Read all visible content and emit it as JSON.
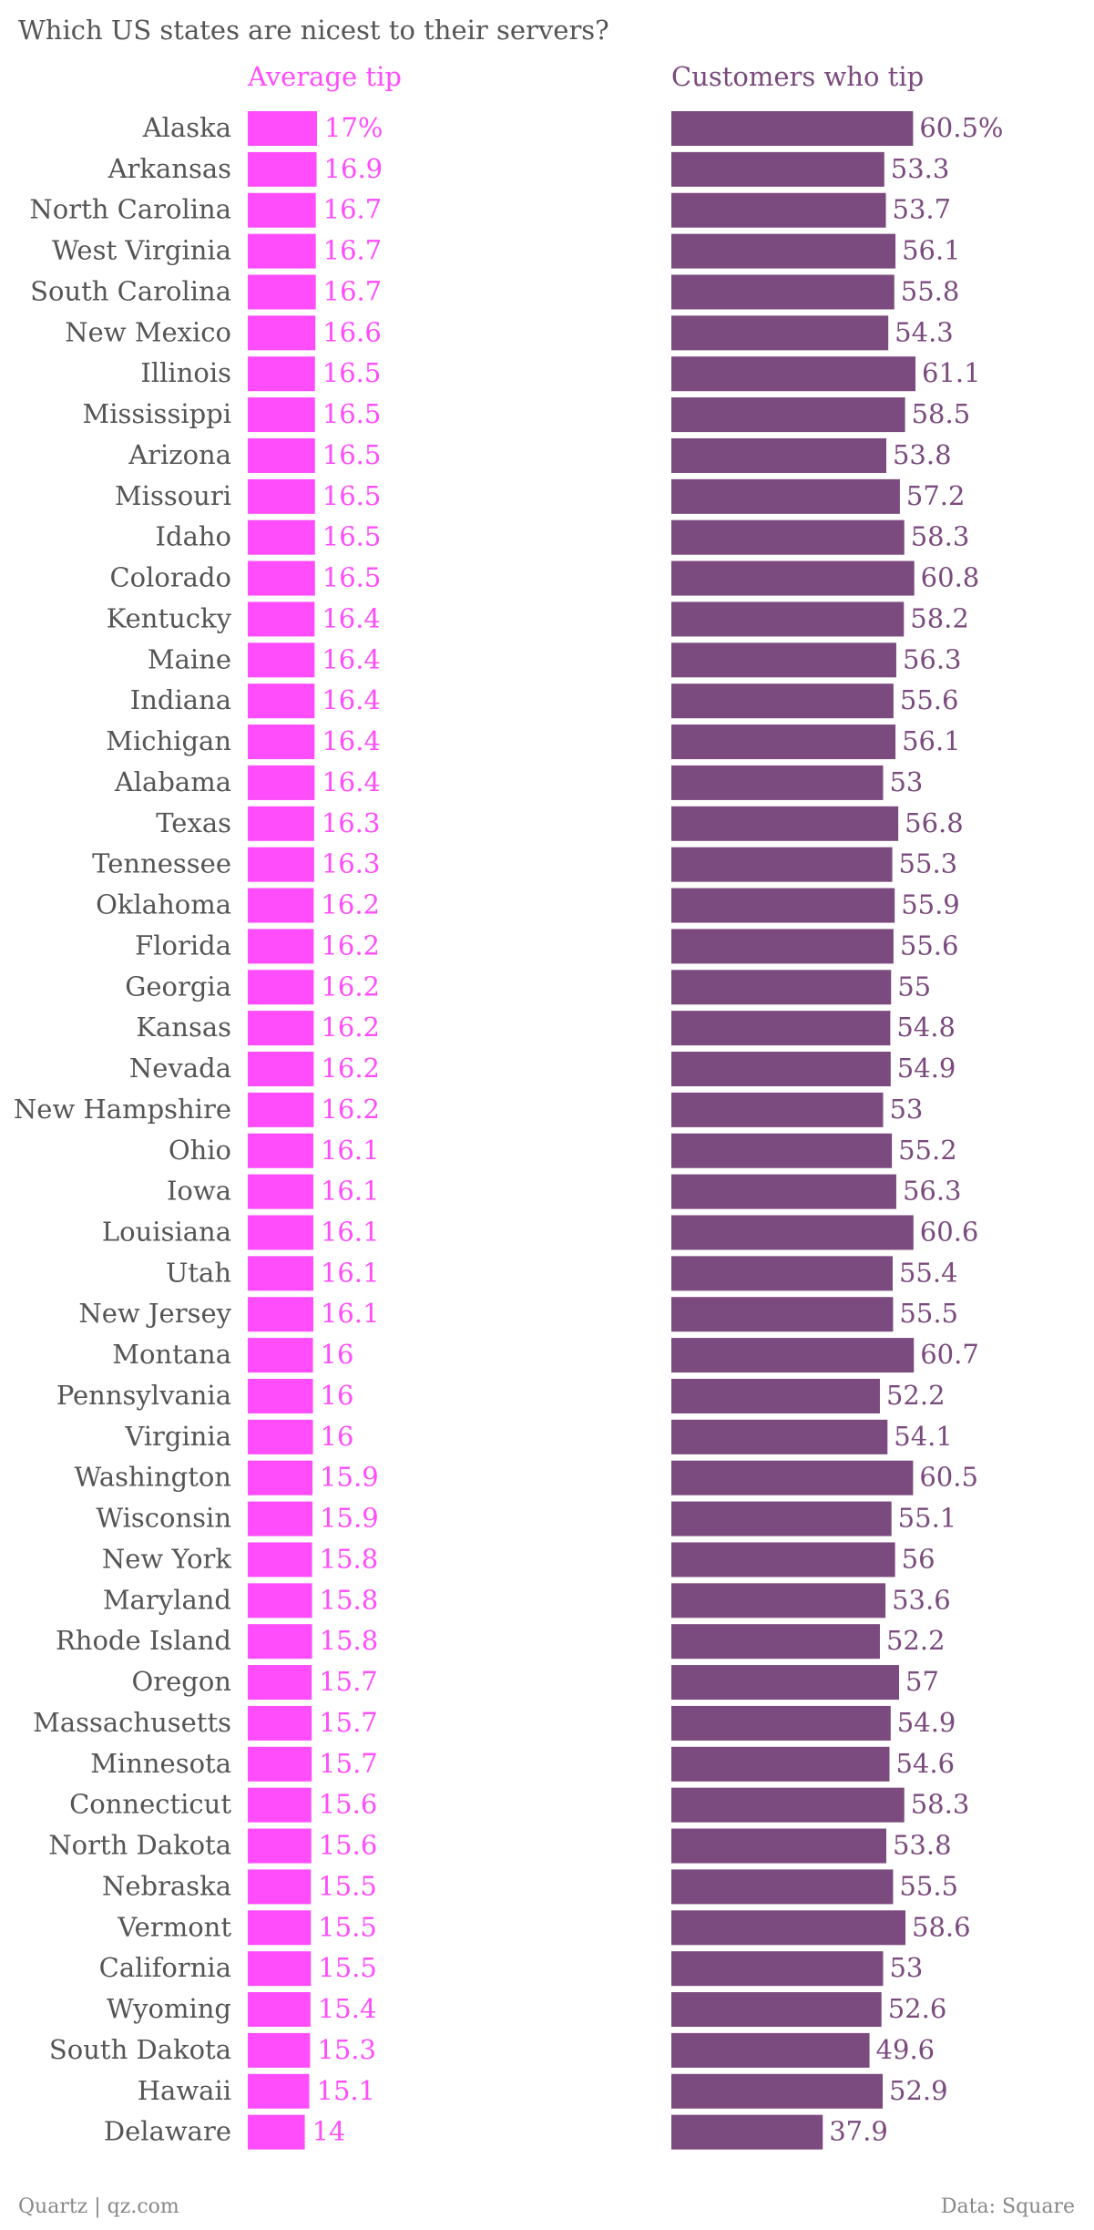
{
  "chart_data": {
    "type": "bar",
    "title": "Which US states are nicest to their servers?",
    "footer_left": "Quartz | qz.com",
    "footer_right": "Data: Square",
    "colors": {
      "average_tip": "#ff4dfc",
      "customers_tip": "#7b4a7e",
      "text": "#555555"
    },
    "categories": [
      "Alaska",
      "Arkansas",
      "North Carolina",
      "West Virginia",
      "South Carolina",
      "New Mexico",
      "Illinois",
      "Mississippi",
      "Arizona",
      "Missouri",
      "Idaho",
      "Colorado",
      "Kentucky",
      "Maine",
      "Indiana",
      "Michigan",
      "Alabama",
      "Texas",
      "Tennessee",
      "Oklahoma",
      "Florida",
      "Georgia",
      "Kansas",
      "Nevada",
      "New Hampshire",
      "Ohio",
      "Iowa",
      "Louisiana",
      "Utah",
      "New Jersey",
      "Montana",
      "Pennsylvania",
      "Virginia",
      "Washington",
      "Wisconsin",
      "New York",
      "Maryland",
      "Rhode Island",
      "Oregon",
      "Massachusetts",
      "Minnesota",
      "Connecticut",
      "North Dakota",
      "Nebraska",
      "Vermont",
      "California",
      "Wyoming",
      "South Dakota",
      "Hawaii",
      "Delaware"
    ],
    "series": [
      {
        "name": "Average tip",
        "values": [
          17,
          16.9,
          16.7,
          16.7,
          16.7,
          16.6,
          16.5,
          16.5,
          16.5,
          16.5,
          16.5,
          16.5,
          16.4,
          16.4,
          16.4,
          16.4,
          16.4,
          16.3,
          16.3,
          16.2,
          16.2,
          16.2,
          16.2,
          16.2,
          16.2,
          16.1,
          16.1,
          16.1,
          16.1,
          16.1,
          16,
          16,
          16,
          15.9,
          15.9,
          15.8,
          15.8,
          15.8,
          15.7,
          15.7,
          15.7,
          15.6,
          15.6,
          15.5,
          15.5,
          15.5,
          15.4,
          15.3,
          15.1,
          14
        ],
        "labels": [
          "17%",
          "16.9",
          "16.7",
          "16.7",
          "16.7",
          "16.6",
          "16.5",
          "16.5",
          "16.5",
          "16.5",
          "16.5",
          "16.5",
          "16.4",
          "16.4",
          "16.4",
          "16.4",
          "16.4",
          "16.3",
          "16.3",
          "16.2",
          "16.2",
          "16.2",
          "16.2",
          "16.2",
          "16.2",
          "16.1",
          "16.1",
          "16.1",
          "16.1",
          "16.1",
          "16",
          "16",
          "16",
          "15.9",
          "15.9",
          "15.8",
          "15.8",
          "15.8",
          "15.7",
          "15.7",
          "15.7",
          "15.6",
          "15.6",
          "15.5",
          "15.5",
          "15.5",
          "15.4",
          "15.3",
          "15.1",
          "14"
        ]
      },
      {
        "name": "Customers who tip",
        "values": [
          60.5,
          53.3,
          53.7,
          56.1,
          55.8,
          54.3,
          61.1,
          58.5,
          53.8,
          57.2,
          58.3,
          60.8,
          58.2,
          56.3,
          55.6,
          56.1,
          53,
          56.8,
          55.3,
          55.9,
          55.6,
          55,
          54.8,
          54.9,
          53,
          55.2,
          56.3,
          60.6,
          55.4,
          55.5,
          60.7,
          52.2,
          54.1,
          60.5,
          55.1,
          56,
          53.6,
          52.2,
          57,
          54.9,
          54.6,
          58.3,
          53.8,
          55.5,
          58.6,
          53,
          52.6,
          49.6,
          52.9,
          37.9
        ],
        "labels": [
          "60.5%",
          "53.3",
          "53.7",
          "56.1",
          "55.8",
          "54.3",
          "61.1",
          "58.5",
          "53.8",
          "57.2",
          "58.3",
          "60.8",
          "58.2",
          "56.3",
          "55.6",
          "56.1",
          "53",
          "56.8",
          "55.3",
          "55.9",
          "55.6",
          "55",
          "54.8",
          "54.9",
          "53",
          "55.2",
          "56.3",
          "60.6",
          "55.4",
          "55.5",
          "60.7",
          "52.2",
          "54.1",
          "60.5",
          "55.1",
          "56",
          "53.6",
          "52.2",
          "57",
          "54.9",
          "54.6",
          "58.3",
          "53.8",
          "55.5",
          "58.6",
          "53",
          "52.6",
          "49.6",
          "52.9",
          "37.9"
        ]
      }
    ]
  }
}
